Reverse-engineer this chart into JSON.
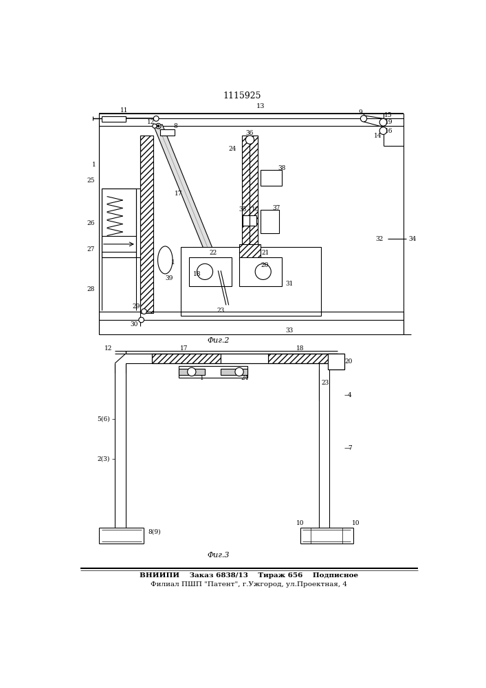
{
  "title": "1115925",
  "fig2_label": "Φиг.2",
  "fig3_label": "Φиг.3",
  "footer_line1": "ВНИИПИ    Заказ 6838/13    Тираж 656    Подписное",
  "footer_line2": "Филиал ПШП \"Патент\", г.Ужгород, ул.Проектная, 4",
  "bg_color": "#ffffff",
  "line_color": "#000000"
}
